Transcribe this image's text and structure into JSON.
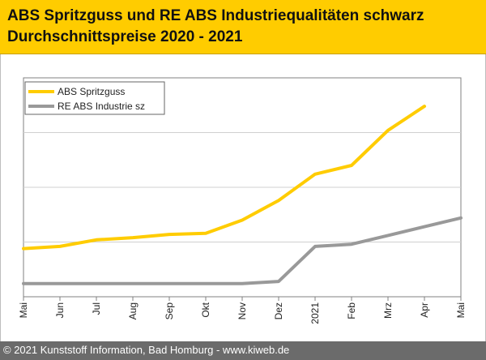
{
  "header": {
    "title_line1": "ABS Spritzguss und RE ABS Industriequalitäten schwarz",
    "title_line2": "Durchschnittspreise 2020 - 2021"
  },
  "footer": {
    "text": "© 2021 Kunststoff Information, Bad Homburg - www.kiweb.de"
  },
  "colors": {
    "header_bg": "#ffcc00",
    "series1": "#ffcc00",
    "series2": "#999999"
  },
  "chart_data": {
    "type": "line",
    "title": "ABS Spritzguss und RE ABS Industriequalitäten schwarz Durchschnittspreise 2020 - 2021",
    "xlabel": "",
    "ylabel": "",
    "ylim": [
      0,
      100
    ],
    "grid": "horizontal",
    "legend_position": "top-left",
    "categories": [
      "Mai",
      "Jun",
      "Jul",
      "Aug",
      "Sep",
      "Okt",
      "Nov",
      "Dez",
      "2021",
      "Feb",
      "Mrz",
      "Apr",
      "Mai"
    ],
    "series": [
      {
        "name": "ABS Spritzguss",
        "color": "#ffcc00",
        "values": [
          22,
          23,
          26,
          27,
          28.5,
          29,
          35,
          44,
          56,
          60,
          76,
          87,
          null
        ]
      },
      {
        "name": "RE ABS Industrie sz",
        "color": "#999999",
        "values": [
          6,
          6,
          6,
          6,
          6,
          6,
          6,
          7,
          23,
          24,
          28,
          32,
          36
        ]
      }
    ]
  }
}
